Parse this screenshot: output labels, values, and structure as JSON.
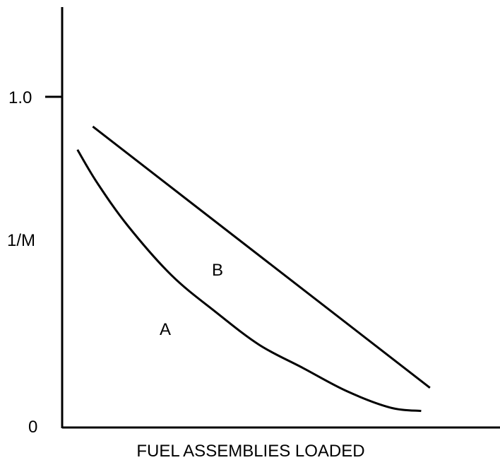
{
  "chart_data": {
    "type": "line",
    "xlabel": "FUEL ASSEMBLIES LOADED",
    "ylabel": "1/M",
    "y_ticks": [
      {
        "value": 0,
        "label": "0"
      },
      {
        "value": 1.0,
        "label": "1.0"
      }
    ],
    "xlim": [
      0,
      10
    ],
    "ylim": [
      0,
      1.0
    ],
    "grid": false,
    "series": [
      {
        "name": "A",
        "color": "#000000",
        "x": [
          0.35,
          0.8,
          1.5,
          2.5,
          3.5,
          4.5,
          5.5,
          6.5,
          7.5,
          8.2
        ],
        "y": [
          0.84,
          0.74,
          0.61,
          0.46,
          0.35,
          0.25,
          0.18,
          0.11,
          0.06,
          0.05
        ]
      },
      {
        "name": "B",
        "color": "#000000",
        "x": [
          0.7,
          8.4
        ],
        "y": [
          0.91,
          0.12
        ]
      }
    ]
  }
}
